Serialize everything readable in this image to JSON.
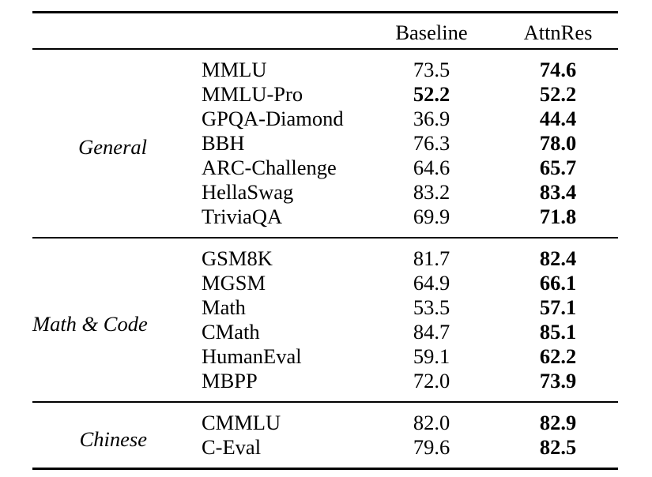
{
  "page": {
    "background_color": "#ffffff",
    "text_color": "#000000",
    "rule_color": "#000000"
  },
  "table": {
    "header": {
      "baseline": "Baseline",
      "attnres": "AttnRes"
    },
    "groups": [
      {
        "label": "General",
        "rows": [
          {
            "benchmark": "MMLU",
            "baseline": "73.5",
            "attnres": "74.6",
            "baseline_bold": false,
            "attnres_bold": true
          },
          {
            "benchmark": "MMLU-Pro",
            "baseline": "52.2",
            "attnres": "52.2",
            "baseline_bold": true,
            "attnres_bold": true
          },
          {
            "benchmark": "GPQA-Diamond",
            "baseline": "36.9",
            "attnres": "44.4",
            "baseline_bold": false,
            "attnres_bold": true
          },
          {
            "benchmark": "BBH",
            "baseline": "76.3",
            "attnres": "78.0",
            "baseline_bold": false,
            "attnres_bold": true
          },
          {
            "benchmark": "ARC-Challenge",
            "baseline": "64.6",
            "attnres": "65.7",
            "baseline_bold": false,
            "attnres_bold": true
          },
          {
            "benchmark": "HellaSwag",
            "baseline": "83.2",
            "attnres": "83.4",
            "baseline_bold": false,
            "attnres_bold": true
          },
          {
            "benchmark": "TriviaQA",
            "baseline": "69.9",
            "attnres": "71.8",
            "baseline_bold": false,
            "attnres_bold": true
          }
        ]
      },
      {
        "label": "Math & Code",
        "rows": [
          {
            "benchmark": "GSM8K",
            "baseline": "81.7",
            "attnres": "82.4",
            "baseline_bold": false,
            "attnres_bold": true
          },
          {
            "benchmark": "MGSM",
            "baseline": "64.9",
            "attnres": "66.1",
            "baseline_bold": false,
            "attnres_bold": true
          },
          {
            "benchmark": "Math",
            "baseline": "53.5",
            "attnres": "57.1",
            "baseline_bold": false,
            "attnres_bold": true
          },
          {
            "benchmark": "CMath",
            "baseline": "84.7",
            "attnres": "85.1",
            "baseline_bold": false,
            "attnres_bold": true
          },
          {
            "benchmark": "HumanEval",
            "baseline": "59.1",
            "attnres": "62.2",
            "baseline_bold": false,
            "attnres_bold": true
          },
          {
            "benchmark": "MBPP",
            "baseline": "72.0",
            "attnres": "73.9",
            "baseline_bold": false,
            "attnres_bold": true
          }
        ]
      },
      {
        "label": "Chinese",
        "rows": [
          {
            "benchmark": "CMMLU",
            "baseline": "82.0",
            "attnres": "82.9",
            "baseline_bold": false,
            "attnres_bold": true
          },
          {
            "benchmark": "C-Eval",
            "baseline": "79.6",
            "attnres": "82.5",
            "baseline_bold": false,
            "attnres_bold": true
          }
        ]
      }
    ]
  }
}
